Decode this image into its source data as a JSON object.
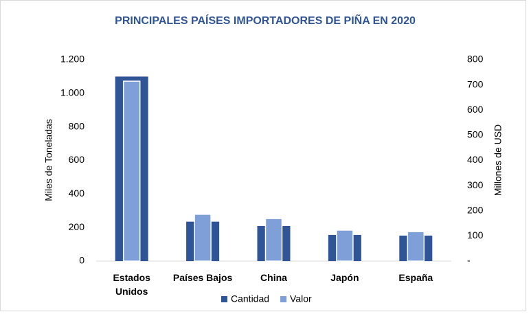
{
  "chart_data": {
    "type": "bar",
    "title": "PRINCIPALES PAÍSES IMPORTADORES DE PIÑA EN 2020",
    "ylabel": "Miles de Toneladas",
    "y2label": "Millones de USD",
    "categories": [
      "Estados Unidos",
      "Países Bajos",
      "China",
      "Japón",
      "España"
    ],
    "series": [
      {
        "name": "Cantidad",
        "color": "#2f5597",
        "values": [
          1100,
          235,
          209,
          156,
          152
        ]
      },
      {
        "name": "Valor",
        "color": "#7f9fd9",
        "axis": "y2",
        "values": [
          715,
          186,
          169,
          123,
          117
        ]
      }
    ],
    "ylim": [
      0,
      1200
    ],
    "yticks": [
      0,
      200,
      400,
      600,
      800,
      {
        "value": 1000,
        "label": "1.000"
      },
      {
        "value": 1200,
        "label": "1.200"
      }
    ],
    "y2lim": [
      0,
      800
    ],
    "y2ticks": [
      {
        "value": 0,
        "label": "-"
      },
      100,
      200,
      300,
      400,
      500,
      600,
      700,
      800
    ],
    "legend": "bottom"
  }
}
